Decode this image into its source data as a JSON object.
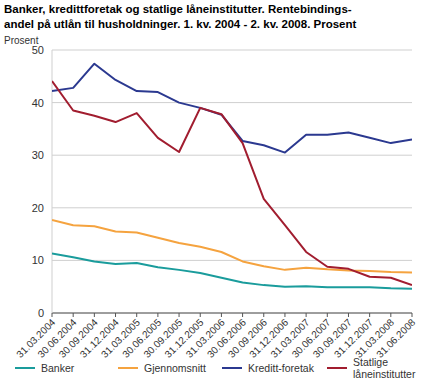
{
  "chart_data": {
    "type": "line",
    "title": [
      "Banker, kredittforetak og statlige låneinstitutter. Rentebindings-",
      "andel på utlån til husholdninger. 1. kv. 2004 - 2. kv. 2008. Prosent"
    ],
    "y_label": "Prosent",
    "categories": [
      "31.03.2004",
      "30.06.2004",
      "30.09.2004",
      "31.12.2004",
      "31.03.2005",
      "30.06.2005",
      "30.09.2005",
      "31.12.2005",
      "31.03.2006",
      "30.06.2006",
      "30.09.2006",
      "31.12.2006",
      "31.03.2007",
      "30.06.2007",
      "30.09.2007",
      "31.12.2007",
      "31.03.2008",
      "31.06.2008"
    ],
    "series": [
      {
        "name": "Banker",
        "color": "#1a9c9c",
        "values": [
          11.3,
          10.6,
          9.8,
          9.3,
          9.5,
          8.7,
          8.2,
          7.6,
          6.7,
          5.8,
          5.3,
          5.0,
          5.1,
          4.9,
          4.9,
          4.9,
          4.7,
          4.6
        ]
      },
      {
        "name": "Gjennomsnitt",
        "color": "#f5a33f",
        "values": [
          17.7,
          16.7,
          16.5,
          15.5,
          15.3,
          14.3,
          13.3,
          12.6,
          11.6,
          9.8,
          8.9,
          8.2,
          8.6,
          8.3,
          8.1,
          8.0,
          7.8,
          7.7
        ]
      },
      {
        "name": "Kreditt-foretak",
        "color": "#2b3990",
        "values": [
          42.2,
          42.8,
          47.4,
          44.3,
          42.2,
          42.0,
          40.0,
          39.0,
          37.7,
          32.7,
          31.9,
          30.5,
          33.9,
          33.9,
          34.3,
          33.3,
          32.3,
          33.0
        ]
      },
      {
        "name": "Statlige låneinstitutter",
        "color": "#a11d2f",
        "values": [
          44.1,
          38.5,
          37.5,
          36.3,
          38.0,
          33.3,
          30.6,
          39.0,
          37.8,
          32.3,
          21.7,
          16.7,
          11.6,
          8.8,
          8.4,
          6.9,
          6.7,
          5.3
        ]
      }
    ],
    "ylim": [
      0,
      50
    ],
    "yticks": [
      0,
      10,
      20,
      30,
      40,
      50
    ],
    "grid": true,
    "legend": "bottom"
  }
}
